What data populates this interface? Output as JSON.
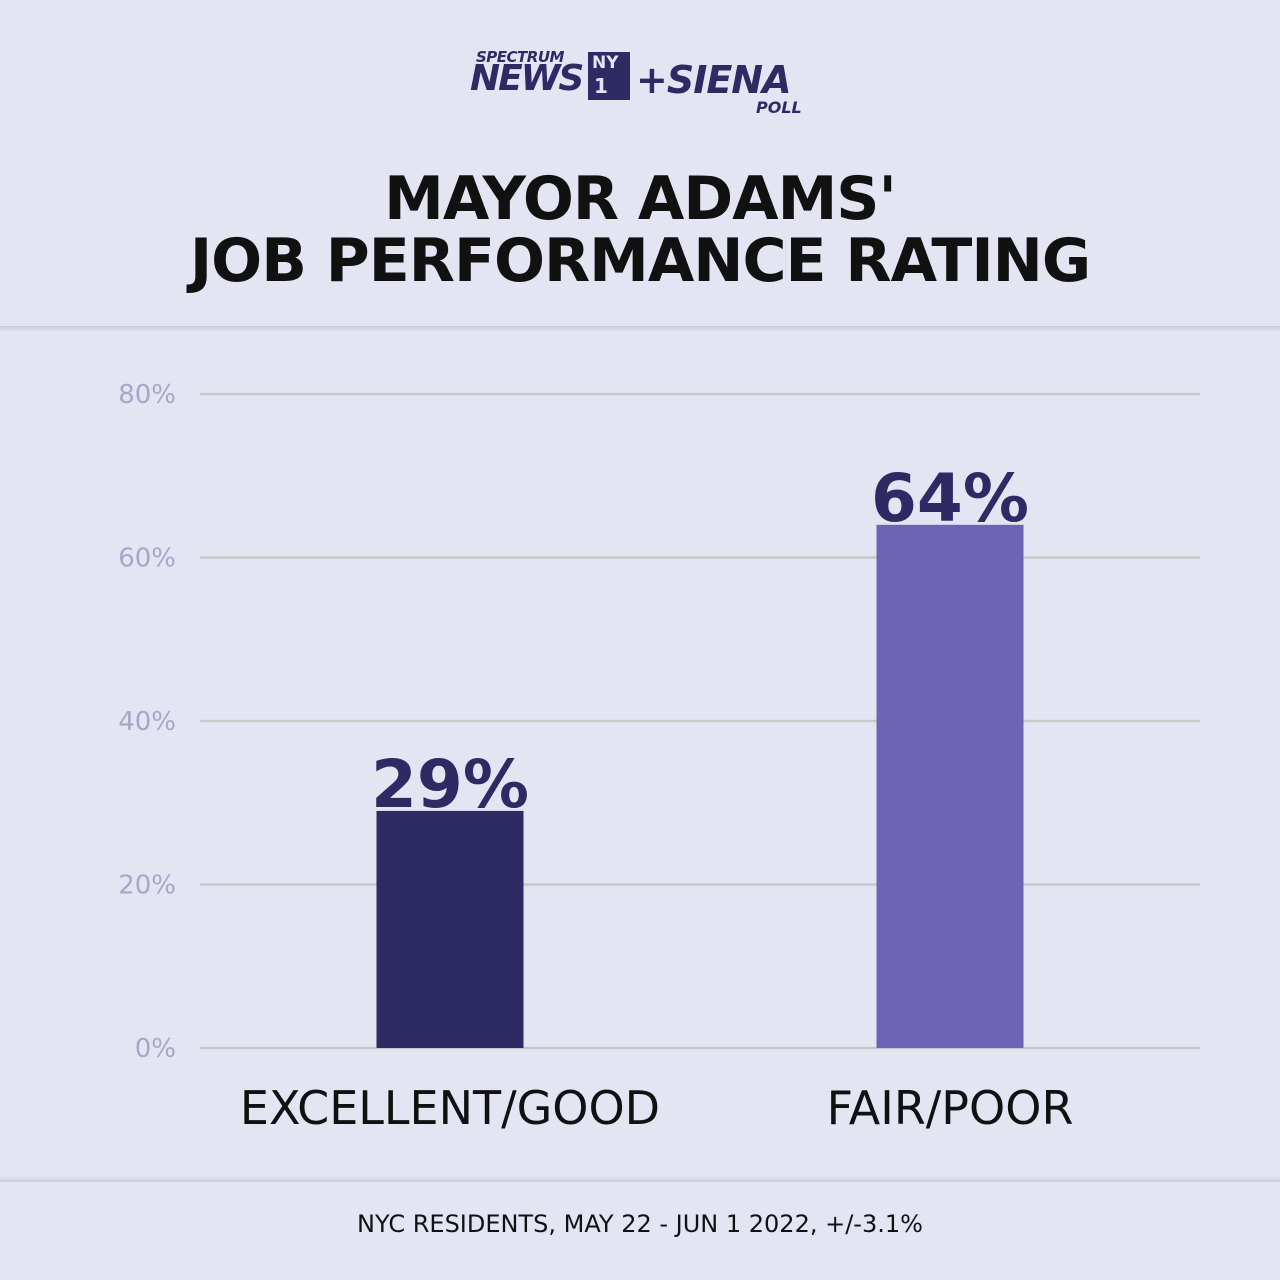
{
  "logo": {
    "line1": "SPECTRUM",
    "news": "NEWS",
    "ny": "NY",
    "one": "1",
    "siena": "+SIENA",
    "poll": "POLL"
  },
  "title_line1": "MAYOR ADAMS'",
  "title_line2": "JOB PERFORMANCE RATING",
  "footnote": "NYC RESIDENTS, MAY 22 - JUN 1 2022, +/-3.1%",
  "colors": {
    "background": "#e3e6f2",
    "bar_dark": "#2e2a63",
    "bar_light": "#6f63b6",
    "grid": "#c6c9c7",
    "tick": "#a7a7c9"
  },
  "chart_data": {
    "type": "bar",
    "categories": [
      "EXCELLENT/GOOD",
      "FAIR/POOR"
    ],
    "values": [
      29,
      64
    ],
    "data_labels": [
      "29%",
      "64%"
    ],
    "bar_colors": [
      "#2e2a63",
      "#6f63b6"
    ],
    "title": "MAYOR ADAMS' JOB PERFORMANCE RATING",
    "ylim": [
      0,
      80
    ],
    "yticks": [
      0,
      20,
      40,
      60,
      80
    ],
    "ytick_labels": [
      "0%",
      "20%",
      "40%",
      "60%",
      "80%"
    ],
    "grid": true,
    "legend": "none"
  }
}
